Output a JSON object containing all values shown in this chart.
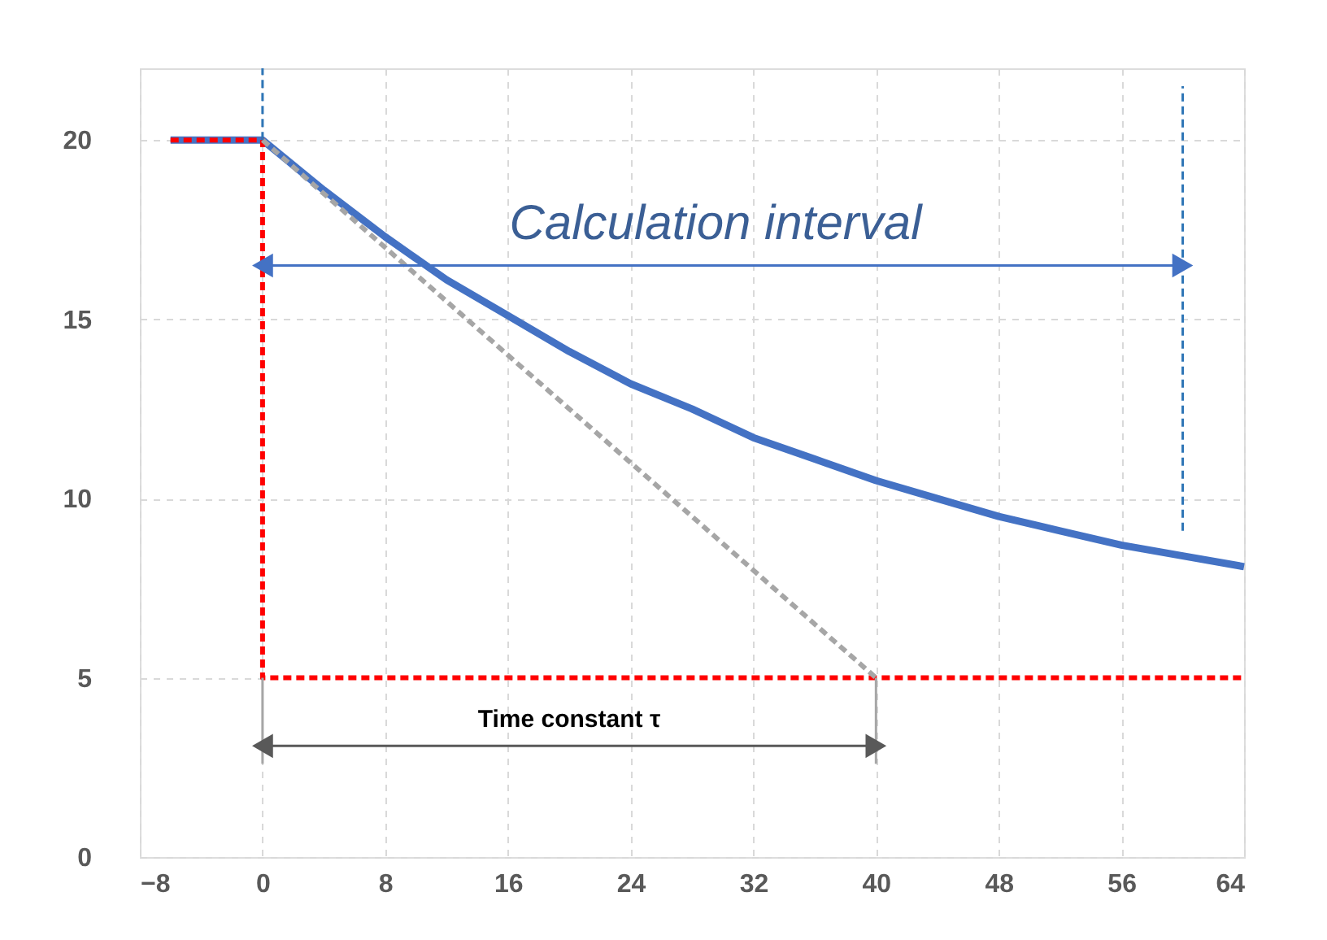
{
  "chart_data": {
    "type": "line",
    "xlim": [
      -8,
      64
    ],
    "ylim": [
      0,
      22
    ],
    "xticks": [
      -8,
      0,
      8,
      16,
      24,
      32,
      40,
      48,
      56,
      64
    ],
    "yticks": [
      0,
      5,
      10,
      15,
      20
    ],
    "grid": true,
    "series": [
      {
        "color": "#4472c4",
        "line_style": "solid",
        "x": [
          -6,
          0,
          4,
          8,
          12,
          16,
          20,
          24,
          28,
          32,
          36,
          40,
          44,
          48,
          52,
          56,
          60,
          64
        ],
        "values": [
          20,
          20,
          18.6,
          17.3,
          16.1,
          15.1,
          14.1,
          13.2,
          12.5,
          11.7,
          11.1,
          10.5,
          10,
          9.5,
          9.1,
          8.7,
          8.4,
          8.1
        ]
      },
      {
        "color": "#ff0000",
        "line_style": "dashed",
        "x": [
          -6,
          0,
          0,
          64
        ],
        "values": [
          20,
          20,
          5,
          5
        ]
      },
      {
        "color": "#a6a6a6",
        "line_style": "dashed",
        "x": [
          0,
          40
        ],
        "values": [
          20,
          5
        ]
      },
      {
        "color": "#2e75b6",
        "line_style": "dashed",
        "x": [
          0,
          0
        ],
        "values": [
          20,
          22
        ]
      },
      {
        "color": "#2e75b6",
        "line_style": "dashed",
        "x": [
          60,
          60
        ],
        "values": [
          9.1,
          21.5
        ]
      },
      {
        "color": "#a6a6a6",
        "line_style": "solid",
        "x": [
          0,
          0
        ],
        "values": [
          5,
          2.6
        ]
      },
      {
        "color": "#a6a6a6",
        "line_style": "solid",
        "x": [
          40,
          40
        ],
        "values": [
          5,
          2.6
        ]
      },
      {
        "color": "#4472c4",
        "line_style": "solid",
        "marker": "triangle",
        "x": [
          0,
          60
        ],
        "values": [
          16.5,
          16.5
        ]
      },
      {
        "color": "#595959",
        "line_style": "solid",
        "marker": "triangle",
        "x": [
          0,
          40
        ],
        "values": [
          3.1,
          3.1
        ]
      }
    ],
    "annotations": [
      "Calculation interval",
      "Time constant τ"
    ]
  }
}
